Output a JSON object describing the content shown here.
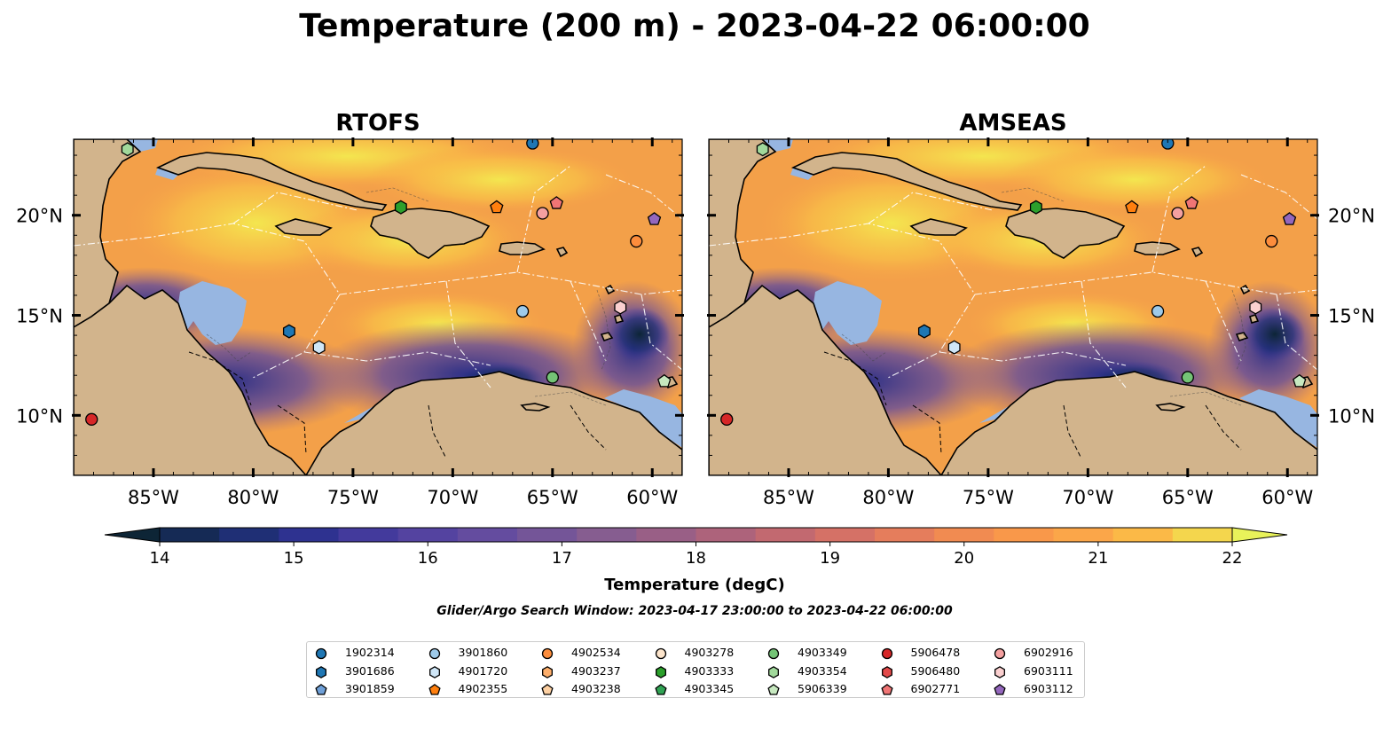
{
  "figure": {
    "title": "Temperature (200 m) - 2023-04-22 06:00:00",
    "colorbar_label": "Temperature (degC)",
    "search_window": "Glider/Argo Search Window: 2023-04-17 23:00:00 to 2023-04-22 06:00:00"
  },
  "panels": [
    {
      "title": "RTOFS"
    },
    {
      "title": "AMSEAS"
    }
  ],
  "axes": {
    "lon_ticks": [
      "85°W",
      "80°W",
      "75°W",
      "70°W",
      "65°W",
      "60°W"
    ],
    "lon_values": [
      -85,
      -80,
      -75,
      -70,
      -65,
      -60
    ],
    "lat_ticks": [
      "20°N",
      "15°N",
      "10°N"
    ],
    "lat_values": [
      20,
      15,
      10
    ],
    "lon_range": [
      -89,
      -58.5
    ],
    "lat_range": [
      7,
      23.8
    ]
  },
  "colorbar": {
    "ticks": [
      "14",
      "15",
      "16",
      "17",
      "18",
      "19",
      "20",
      "21",
      "22"
    ],
    "tick_values": [
      14,
      15,
      16,
      17,
      18,
      19,
      20,
      21,
      22
    ],
    "range": [
      14,
      22
    ],
    "step": 0.5,
    "colors": [
      "#0d2536",
      "#152a55",
      "#1f2f75",
      "#2e3290",
      "#433a9c",
      "#5443a0",
      "#644c9f",
      "#745598",
      "#865d90",
      "#995f86",
      "#ad637b",
      "#c26970",
      "#d57166",
      "#e57d5c",
      "#f18b51",
      "#f9984a",
      "#fba649",
      "#fbb947",
      "#f4d64d",
      "#e8f25a"
    ],
    "extend": "both"
  },
  "land_color": "#d2b48c",
  "shelf_color": "#97b6e1",
  "legend": {
    "columns": [
      [
        {
          "id": "1902314",
          "marker": "circle",
          "color": "#1f77b4"
        },
        {
          "id": "3901686",
          "marker": "hexagon",
          "color": "#1f77b4"
        },
        {
          "id": "3901859",
          "marker": "pentagon",
          "color": "#6fa0d8"
        }
      ],
      [
        {
          "id": "3901860",
          "marker": "circle",
          "color": "#9ecae9"
        },
        {
          "id": "4901720",
          "marker": "hexagon",
          "color": "#cfe6f7"
        },
        {
          "id": "4902355",
          "marker": "pentagon",
          "color": "#ff7f0e"
        }
      ],
      [
        {
          "id": "4902534",
          "marker": "circle",
          "color": "#fd8d3c"
        },
        {
          "id": "4903237",
          "marker": "hexagon",
          "color": "#fdae6b"
        },
        {
          "id": "4903238",
          "marker": "pentagon",
          "color": "#fdd0a2"
        }
      ],
      [
        {
          "id": "4903278",
          "marker": "circle",
          "color": "#fde5cc"
        },
        {
          "id": "4903333",
          "marker": "hexagon",
          "color": "#2ca02c"
        },
        {
          "id": "4903345",
          "marker": "pentagon",
          "color": "#31a354"
        }
      ],
      [
        {
          "id": "4903349",
          "marker": "circle",
          "color": "#74c476"
        },
        {
          "id": "4903354",
          "marker": "hexagon",
          "color": "#a1d99b"
        },
        {
          "id": "5906339",
          "marker": "pentagon",
          "color": "#c7e9c0"
        }
      ],
      [
        {
          "id": "5906478",
          "marker": "circle",
          "color": "#d62728"
        },
        {
          "id": "5906480",
          "marker": "hexagon",
          "color": "#e34a4a"
        },
        {
          "id": "6902771",
          "marker": "pentagon",
          "color": "#f07575"
        }
      ],
      [
        {
          "id": "6902916",
          "marker": "circle",
          "color": "#f4a0a0"
        },
        {
          "id": "6903111",
          "marker": "hexagon",
          "color": "#fbd0d0"
        },
        {
          "id": "6903112",
          "marker": "pentagon",
          "color": "#9467bd"
        }
      ]
    ]
  },
  "platforms": [
    {
      "id": "1902314",
      "lon": -66.0,
      "lat": 23.6
    },
    {
      "id": "3901686",
      "lon": -78.2,
      "lat": 14.2
    },
    {
      "id": "3901860",
      "lon": -66.5,
      "lat": 15.2
    },
    {
      "id": "4901720",
      "lon": -76.7,
      "lat": 13.4
    },
    {
      "id": "4902355",
      "lon": -67.8,
      "lat": 20.4
    },
    {
      "id": "4902534",
      "lon": -60.8,
      "lat": 18.7
    },
    {
      "id": "4903333",
      "lon": -72.6,
      "lat": 20.4
    },
    {
      "id": "4903349",
      "lon": -65.0,
      "lat": 11.9
    },
    {
      "id": "4903354",
      "lon": -86.3,
      "lat": 23.3
    },
    {
      "id": "5906339",
      "lon": -59.4,
      "lat": 11.7
    },
    {
      "id": "5906478",
      "lon": -88.1,
      "lat": 9.8
    },
    {
      "id": "6902771",
      "lon": -64.8,
      "lat": 20.6
    },
    {
      "id": "6902916",
      "lon": -65.5,
      "lat": 20.1
    },
    {
      "id": "6903111",
      "lon": -61.6,
      "lat": 15.4
    },
    {
      "id": "6903112",
      "lon": -59.9,
      "lat": 19.8
    }
  ]
}
